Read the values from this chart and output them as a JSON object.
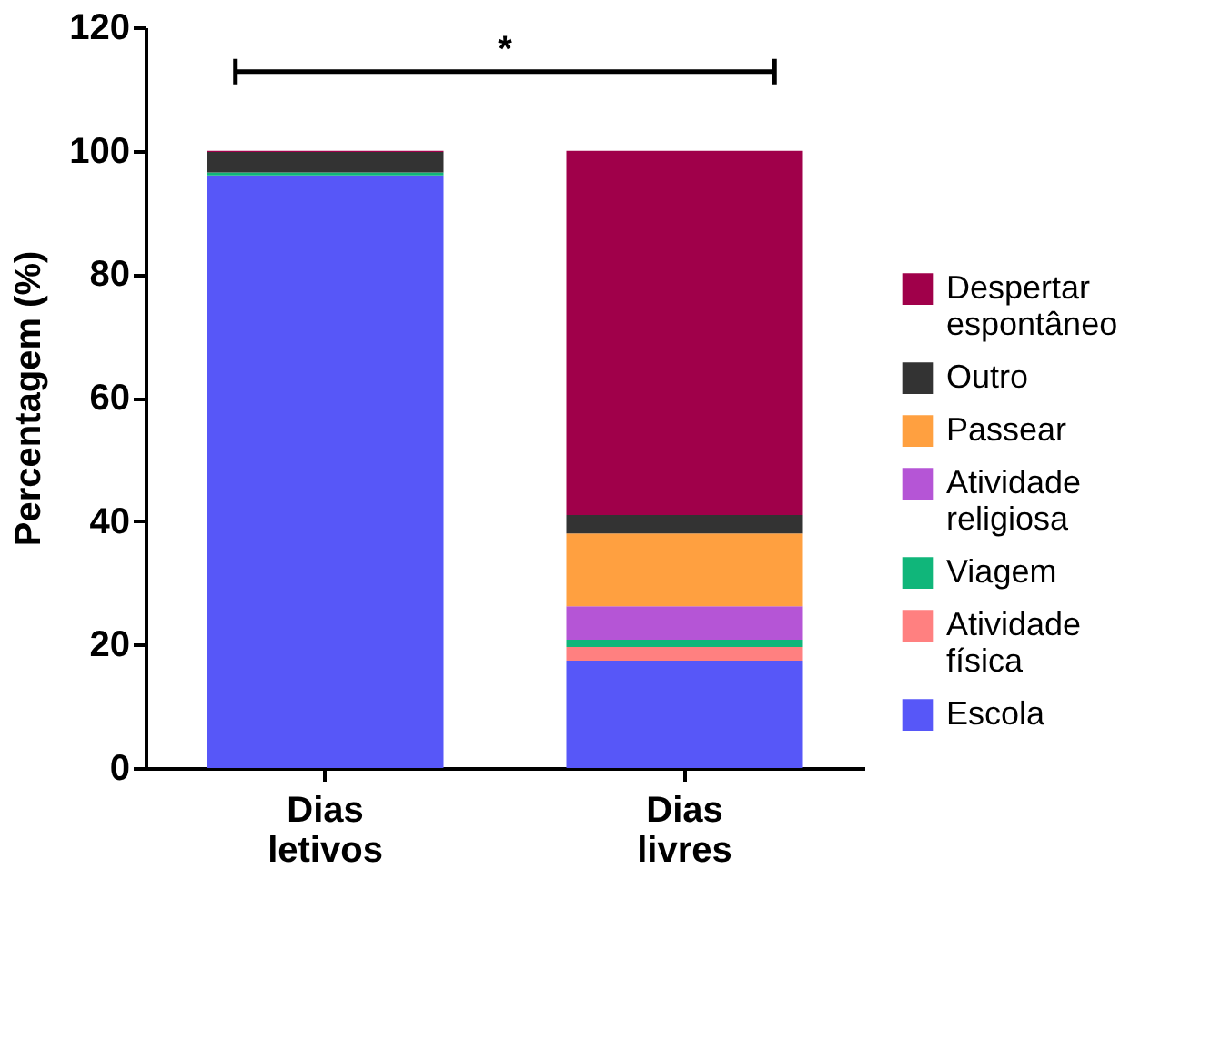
{
  "chart_data": {
    "type": "bar",
    "stacked": true,
    "ylabel": "Percentagem (%)",
    "categories": [
      "Dias letivos",
      "Dias livres"
    ],
    "series": [
      {
        "name": "Escola",
        "color": "#5757f8",
        "values": [
          96,
          17.4
        ]
      },
      {
        "name": "Atividade física",
        "color": "#ff8080",
        "values": [
          0,
          2.2
        ]
      },
      {
        "name": "Viagem",
        "color": "#10b67a",
        "values": [
          0.5,
          1.2
        ]
      },
      {
        "name": "Atividade religiosa",
        "color": "#b555d6",
        "values": [
          0,
          5.4
        ]
      },
      {
        "name": "Passear",
        "color": "#ffa040",
        "values": [
          0,
          11.8
        ]
      },
      {
        "name": "Outro",
        "color": "#333333",
        "values": [
          3.3,
          3
        ]
      },
      {
        "name": "Despertar espontâneo",
        "color": "#a0004a",
        "values": [
          0.2,
          59
        ]
      }
    ],
    "ylim": [
      0,
      120
    ],
    "yticks": [
      0,
      20,
      40,
      60,
      80,
      100,
      120
    ],
    "grid": false,
    "legend": "right",
    "annotations": [
      "*"
    ]
  }
}
